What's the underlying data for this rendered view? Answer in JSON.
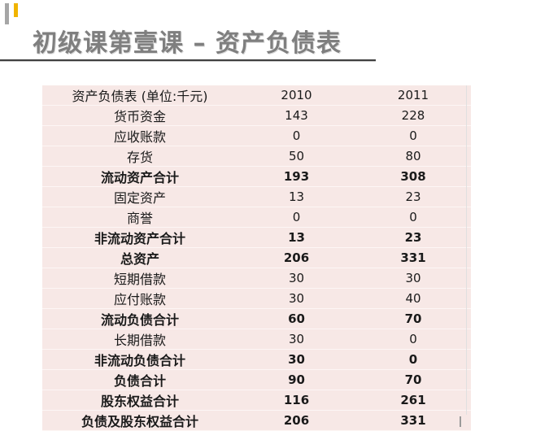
{
  "slide": {
    "title": "初级课第壹课 – 资产负债表"
  },
  "table": {
    "header": {
      "label": "资产负债表 (单位:千元)",
      "year_1": "2010",
      "year_2": "2011"
    },
    "rows": [
      {
        "label": "货币资金",
        "v2010": "143",
        "v2011": "228",
        "bold": false
      },
      {
        "label": "应收账款",
        "v2010": "0",
        "v2011": "0",
        "bold": false
      },
      {
        "label": "存货",
        "v2010": "50",
        "v2011": "80",
        "bold": false
      },
      {
        "label": "流动资产合计",
        "v2010": "193",
        "v2011": "308",
        "bold": true
      },
      {
        "label": "固定资产",
        "v2010": "13",
        "v2011": "23",
        "bold": false
      },
      {
        "label": "商誉",
        "v2010": "0",
        "v2011": "0",
        "bold": false
      },
      {
        "label": "非流动资产合计",
        "v2010": "13",
        "v2011": "23",
        "bold": true
      },
      {
        "label": "总资产",
        "v2010": "206",
        "v2011": "331",
        "bold": true
      },
      {
        "label": "短期借款",
        "v2010": "30",
        "v2011": "30",
        "bold": false
      },
      {
        "label": "应付账款",
        "v2010": "30",
        "v2011": "40",
        "bold": false
      },
      {
        "label": "流动负债合计",
        "v2010": "60",
        "v2011": "70",
        "bold": true
      },
      {
        "label": "长期借款",
        "v2010": "30",
        "v2011": "0",
        "bold": false
      },
      {
        "label": "非流动负债合计",
        "v2010": "30",
        "v2011": "0",
        "bold": true
      },
      {
        "label": "负债合计",
        "v2010": "90",
        "v2011": "70",
        "bold": true
      },
      {
        "label": "股东权益合计",
        "v2010": "116",
        "v2011": "261",
        "bold": true
      },
      {
        "label": "负债及股东权益合计",
        "v2010": "206",
        "v2011": "331",
        "bold": true
      }
    ]
  }
}
